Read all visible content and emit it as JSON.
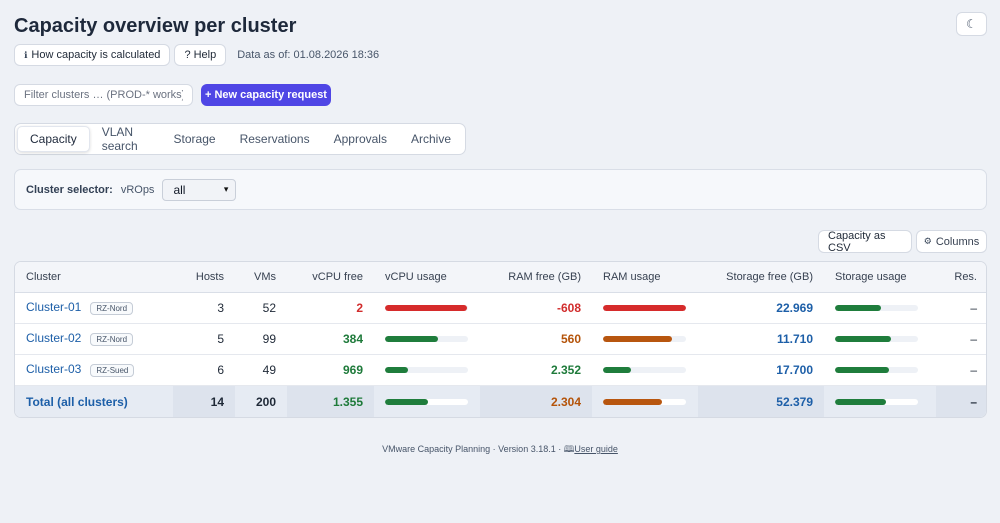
{
  "header": {
    "title": "Capacity overview per cluster",
    "theme_icon": "moon-icon",
    "how_calc_label": "How capacity is calculated",
    "help_label": "? Help",
    "data_asof": "Data as of: 01.08.2026 18:36"
  },
  "filter": {
    "placeholder": "Filter clusters … (PROD-* works)",
    "new_request_label": "+ New capacity request"
  },
  "tabs": [
    "Capacity",
    "VLAN search",
    "Storage",
    "Reservations",
    "Approvals",
    "Archive"
  ],
  "selector": {
    "label": "Cluster selector:",
    "source": "vROps",
    "value": "all"
  },
  "toolbar": {
    "csv_label": "Capacity as CSV",
    "columns_label": "Columns"
  },
  "table": {
    "headers": [
      "Cluster",
      "Hosts",
      "VMs",
      "vCPU free",
      "vCPU usage",
      "RAM free (GB)",
      "RAM usage",
      "Storage free (GB)",
      "Storage usage",
      "Res."
    ],
    "rows": [
      {
        "name": "Cluster-01",
        "badge": "RZ-Nord",
        "hosts": "3",
        "vms": "52",
        "vcpu_free": "2",
        "vcpu_usage": 0.99,
        "ram_free": "-608",
        "ram_usage": 1.0,
        "storage_free": "22.969",
        "storage_usage": 0.56,
        "res": "–"
      },
      {
        "name": "Cluster-02",
        "badge": "RZ-Nord",
        "hosts": "5",
        "vms": "99",
        "vcpu_free": "384",
        "vcpu_usage": 0.64,
        "ram_free": "560",
        "ram_usage": 0.83,
        "storage_free": "11.710",
        "storage_usage": 0.67,
        "res": "–"
      },
      {
        "name": "Cluster-03",
        "badge": "RZ-Sued",
        "hosts": "6",
        "vms": "49",
        "vcpu_free": "969",
        "vcpu_usage": 0.28,
        "ram_free": "2.352",
        "ram_usage": 0.34,
        "storage_free": "17.700",
        "storage_usage": 0.65,
        "res": "–"
      }
    ],
    "total": {
      "name": "Total (all clusters)",
      "hosts": "14",
      "vms": "200",
      "vcpu_free": "1.355",
      "vcpu_usage": 0.52,
      "ram_free": "2.304",
      "ram_usage": 0.71,
      "storage_free": "52.379",
      "storage_usage": 0.62,
      "res": "–"
    }
  },
  "footer": {
    "text": "VMware Capacity Planning · Version 3.18.1 · ",
    "guide_label": "User guide",
    "guide_icon": "book-icon"
  }
}
